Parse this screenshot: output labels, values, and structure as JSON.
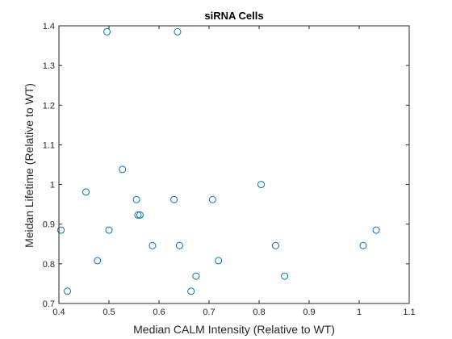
{
  "chart_data": {
    "type": "scatter",
    "title": "siRNA Cells",
    "xlabel": "Median CALM Intensity (Relative to WT)",
    "ylabel": "Meidan Lifetime (Relative to WT)",
    "xlim": [
      0.4,
      1.1
    ],
    "ylim": [
      0.7,
      1.4
    ],
    "xticks": [
      0.4,
      0.5,
      0.6,
      0.7,
      0.8,
      0.9,
      1.0,
      1.1
    ],
    "xtick_labels": [
      "0.4",
      "0.5",
      "0.6",
      "0.7",
      "0.8",
      "0.9",
      "1",
      "1.1"
    ],
    "yticks": [
      0.7,
      0.8,
      0.9,
      1.0,
      1.1,
      1.2,
      1.3,
      1.4
    ],
    "ytick_labels": [
      "0.7",
      "0.8",
      "0.9",
      "1",
      "1.1",
      "1.2",
      "1.3",
      "1.4"
    ],
    "grid": false,
    "marker": "open-circle",
    "marker_color": "#0072bd",
    "x": [
      0.496,
      0.637,
      0.527,
      0.454,
      0.555,
      0.63,
      0.707,
      0.804,
      0.558,
      0.562,
      0.404,
      0.5,
      0.587,
      0.641,
      1.034,
      0.833,
      1.008,
      0.477,
      0.719,
      0.417,
      0.664,
      0.674,
      0.851
    ],
    "y": [
      1.385,
      1.385,
      1.038,
      0.981,
      0.962,
      0.962,
      0.962,
      1.0,
      0.923,
      0.923,
      0.885,
      0.885,
      0.846,
      0.846,
      0.885,
      0.846,
      0.846,
      0.808,
      0.808,
      0.731,
      0.731,
      0.769,
      0.769
    ]
  }
}
